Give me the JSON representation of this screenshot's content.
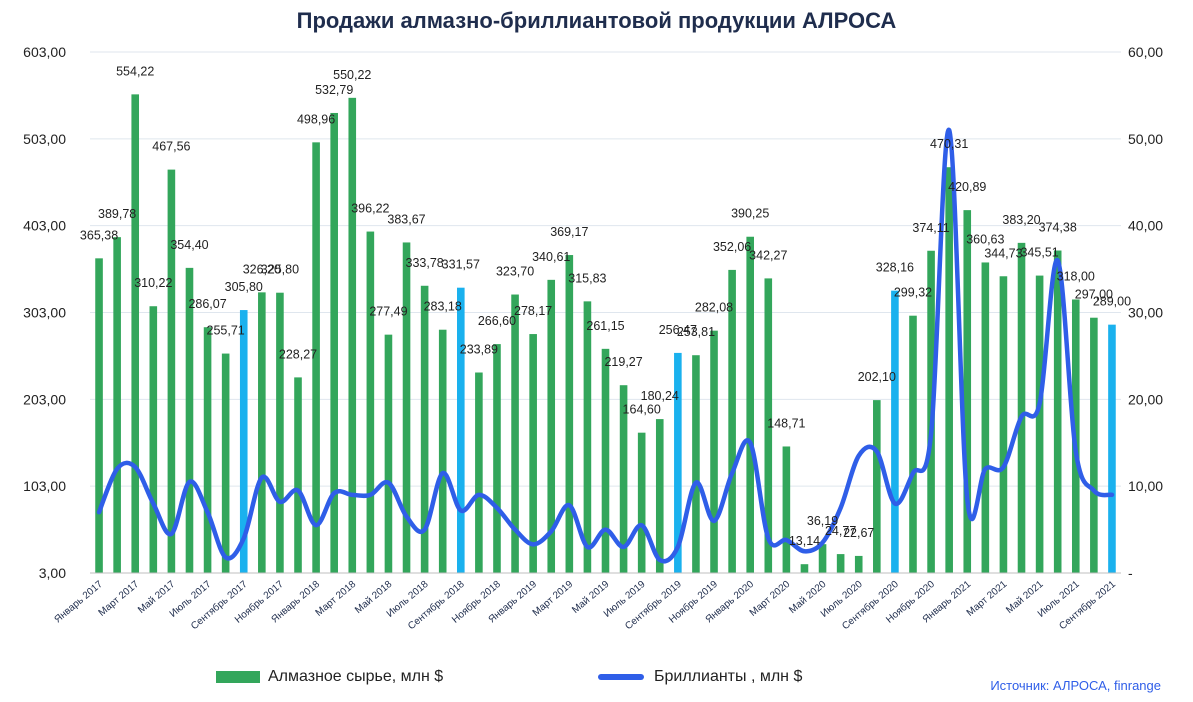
{
  "title": "Продажи алмазно-бриллиантовой продукции АЛРОСА",
  "legend": {
    "bars": "Алмазное сырье, млн $",
    "line": "Бриллианты , млн $"
  },
  "source": "Источник: АЛРОСА, finrange",
  "colors": {
    "bar": "#33a65b",
    "bar_highlight": "#1ab1ee",
    "line": "#2f5ee8",
    "grid": "#dfe6ee",
    "title": "#1f2d4d"
  },
  "chart_data": {
    "type": "bar",
    "title": "Продажи алмазно-бриллиантовой продукции АЛРОСА",
    "left_axis": {
      "min": 3,
      "max": 603,
      "ticks": [
        "3,00",
        "103,00",
        "203,00",
        "303,00",
        "403,00",
        "503,00",
        "603,00"
      ]
    },
    "right_axis": {
      "min": 0,
      "max": 60,
      "ticks": [
        "-",
        "10,00",
        "20,00",
        "30,00",
        "40,00",
        "50,00",
        "60,00"
      ]
    },
    "months": [
      "Январь 2017",
      "Февраль 2017",
      "Март 2017",
      "Апрель 2017",
      "Май 2017",
      "Июнь 2017",
      "Июль 2017",
      "Август 2017",
      "Сентябрь 2017",
      "Октябрь 2017",
      "Ноябрь 2017",
      "Декабрь 2017",
      "Январь 2018",
      "Февраль 2018",
      "Март 2018",
      "Апрель 2018",
      "Май 2018",
      "Июнь 2018",
      "Июль 2018",
      "Август 2018",
      "Сентябрь 2018",
      "Октябрь 2018",
      "Ноябрь 2018",
      "Декабрь 2018",
      "Январь 2019",
      "Февраль 2019",
      "Март 2019",
      "Апрель 2019",
      "Май 2019",
      "Июнь 2019",
      "Июль 2019",
      "Август 2019",
      "Сентябрь 2019",
      "Октябрь 2019",
      "Ноябрь 2019",
      "Декабрь 2019",
      "Январь 2020",
      "Февраль 2020",
      "Март 2020",
      "Апрель 2020",
      "Май 2020",
      "Июнь 2020",
      "Июль 2020",
      "Август 2020",
      "Сентябрь 2020",
      "Октябрь 2020",
      "Ноябрь 2020",
      "Декабрь 2020",
      "Январь 2021",
      "Февраль 2021",
      "Март 2021",
      "Апрель 2021",
      "Май 2021",
      "Июнь 2021",
      "Июль 2021",
      "Август 2021",
      "Сентябрь 2021"
    ],
    "x_tick_labels": [
      "Январь 2017",
      "Март 2017",
      "Май 2017",
      "Июль 2017",
      "Сентябрь 2017",
      "Ноябрь 2017",
      "Январь 2018",
      "Март 2018",
      "Май 2018",
      "Июль 2018",
      "Сентябрь 2018",
      "Ноябрь 2018",
      "Январь 2019",
      "Март 2019",
      "Май 2019",
      "Июль 2019",
      "Сентябрь 2019",
      "Ноябрь 2019",
      "Январь 2020",
      "Март 2020",
      "Май 2020",
      "Июль 2020",
      "Сентябрь 2020",
      "Ноябрь 2020",
      "Январь 2021",
      "Март 2021",
      "Май 2021",
      "Июль 2021",
      "Сентябрь 2021"
    ],
    "series": [
      {
        "name": "Алмазное сырье, млн $",
        "type": "bar",
        "axis": "left",
        "values": [
          365.38,
          389.78,
          554.22,
          310.22,
          467.56,
          354.4,
          286.07,
          255.71,
          305.8,
          326.2,
          325.8,
          228.27,
          498.96,
          532.79,
          550.22,
          396.22,
          277.49,
          383.67,
          333.78,
          283.18,
          331.57,
          233.89,
          266.6,
          323.7,
          278.17,
          340.61,
          369.17,
          315.83,
          261.15,
          219.27,
          164.6,
          180.24,
          256.47,
          253.81,
          282.08,
          352.06,
          390.25,
          342.27,
          148.71,
          13.14,
          36.19,
          24.77,
          22.67,
          202.1,
          328.16,
          299.32,
          374.11,
          470.31,
          420.89,
          360.63,
          344.73,
          383.2,
          345.51,
          374.38,
          318.0,
          297.0,
          289.0
        ],
        "labels": [
          "365,38",
          "389,78",
          "554,22",
          "310,22",
          "467,56",
          "354,40",
          "286,07",
          "255,71",
          "305,80",
          "326,20",
          "325,80",
          "228,27",
          "498,96",
          "532,79",
          "550,22",
          "396,22",
          "277,49",
          "383,67",
          "333,78",
          "283,18",
          "331,57",
          "233,89",
          "266,60",
          "323,70",
          "278,17",
          "340,61",
          "369,17",
          "315,83",
          "261,15",
          "219,27",
          "164,60",
          "180,24",
          "256,47",
          "253,81",
          "282,08",
          "352,06",
          "390,25",
          "342,27",
          "148,71",
          "13,14",
          "36,19",
          "24,77",
          "22,67",
          "202,10",
          "328,16",
          "299,32",
          "374,11",
          "470,31",
          "420,89",
          "360,63",
          "344,73",
          "383,20",
          "345,51",
          "374,38",
          "318,00",
          "297,00",
          "289,00"
        ],
        "highlighted_months": [
          "Сентябрь 2017",
          "Сентябрь 2018",
          "Сентябрь 2019",
          "Сентябрь 2020",
          "Сентябрь 2021"
        ]
      },
      {
        "name": "Бриллианты , млн $",
        "type": "line",
        "axis": "right",
        "values": [
          7.0,
          12.0,
          12.2,
          8.0,
          4.5,
          10.5,
          7.0,
          1.8,
          4.0,
          11.0,
          8.2,
          9.5,
          5.5,
          9.2,
          9.0,
          9.0,
          10.4,
          6.5,
          5.0,
          11.5,
          7.2,
          9.0,
          7.5,
          5.0,
          3.3,
          4.8,
          7.8,
          3.0,
          5.0,
          3.0,
          5.5,
          1.5,
          3.0,
          10.4,
          6.0,
          11.5,
          15.0,
          4.0,
          3.8,
          2.5,
          3.5,
          7.5,
          13.5,
          14.0,
          8.0,
          11.5,
          16.0,
          51.0,
          8.5,
          12.0,
          12.2,
          18.0,
          19.5,
          36.0,
          14.0,
          9.5,
          9.0
        ]
      }
    ],
    "grid": true,
    "legend_position": "bottom"
  }
}
